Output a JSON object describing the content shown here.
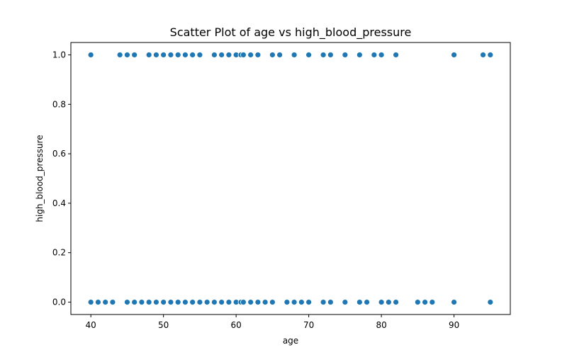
{
  "chart_data": {
    "type": "scatter",
    "title": "Scatter Plot of age vs high_blood_pressure",
    "xlabel": "age",
    "ylabel": "high_blood_pressure",
    "xlim": [
      37.25,
      97.75
    ],
    "ylim": [
      -0.05,
      1.05
    ],
    "xticks": [
      40,
      50,
      60,
      70,
      80,
      90
    ],
    "xtick_labels": [
      "40",
      "50",
      "60",
      "70",
      "80",
      "90"
    ],
    "yticks": [
      0.0,
      0.2,
      0.4,
      0.6,
      0.8,
      1.0
    ],
    "ytick_labels": [
      "0.0",
      "0.2",
      "0.4",
      "0.6",
      "0.8",
      "1.0"
    ],
    "grid": false,
    "legend": null,
    "marker_color": "#1f77b4",
    "series": [
      {
        "x": [
          40,
          44,
          45,
          46,
          48,
          49,
          50,
          51,
          52,
          53,
          54,
          55,
          57,
          58,
          59,
          60,
          60.667,
          61,
          62,
          63,
          65,
          66,
          68,
          70,
          72,
          73,
          75,
          77,
          79,
          80,
          82,
          90,
          94,
          95
        ],
        "y": [
          1,
          1,
          1,
          1,
          1,
          1,
          1,
          1,
          1,
          1,
          1,
          1,
          1,
          1,
          1,
          1,
          1,
          1,
          1,
          1,
          1,
          1,
          1,
          1,
          1,
          1,
          1,
          1,
          1,
          1,
          1,
          1,
          1,
          1
        ]
      },
      {
        "x": [
          40,
          41,
          42,
          43,
          45,
          46,
          47,
          48,
          49,
          50,
          51,
          52,
          53,
          54,
          55,
          56,
          57,
          58,
          59,
          60,
          60.667,
          61,
          62,
          63,
          64,
          65,
          67,
          68,
          69,
          70,
          72,
          73,
          75,
          77,
          78,
          80,
          81,
          82,
          85,
          86,
          87,
          90,
          95
        ],
        "y": [
          0,
          0,
          0,
          0,
          0,
          0,
          0,
          0,
          0,
          0,
          0,
          0,
          0,
          0,
          0,
          0,
          0,
          0,
          0,
          0,
          0,
          0,
          0,
          0,
          0,
          0,
          0,
          0,
          0,
          0,
          0,
          0,
          0,
          0,
          0,
          0,
          0,
          0,
          0,
          0,
          0,
          0,
          0
        ]
      }
    ]
  }
}
